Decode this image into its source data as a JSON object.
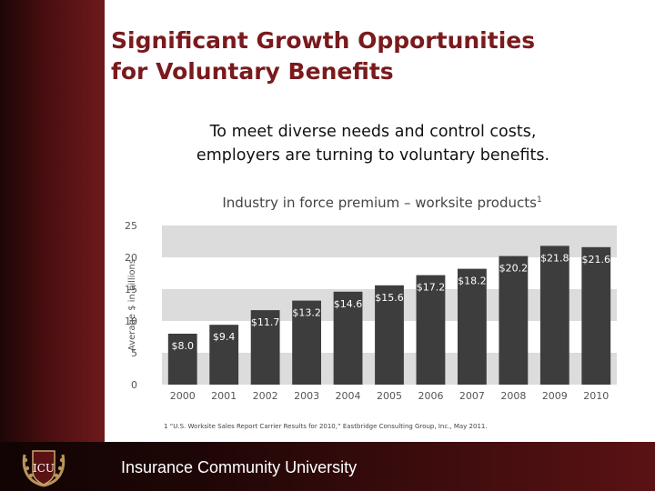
{
  "slide": {
    "title_line1": "Significant Growth Opportunities",
    "title_line2": "for Voluntary Benefits",
    "subtitle_line1": "To meet diverse needs and control costs,",
    "subtitle_line2": "employers are turning to voluntary benefits.",
    "footnote": "1 “U.S. Worksite Sales Report Carrier Results for 2010,” Eastbridge Consulting Group, Inc., May 2011.",
    "footer_text": "Insurance Community University",
    "logo_text": "ICU"
  },
  "colors": {
    "title": "#7a1a1d",
    "bar": "#3d3d3d",
    "band": "#dcdcdc",
    "footer": "#2a0808"
  },
  "chart_data": {
    "type": "bar",
    "title": "Industry in force premium – worksite products",
    "title_superscript": "1",
    "ylabel": "Average $ in billions",
    "xlabel": "",
    "categories": [
      "2000",
      "2001",
      "2002",
      "2003",
      "2004",
      "2005",
      "2006",
      "2007",
      "2008",
      "2009",
      "2010"
    ],
    "values": [
      8.0,
      9.4,
      11.7,
      13.2,
      14.6,
      15.6,
      17.2,
      18.2,
      20.2,
      21.8,
      21.6
    ],
    "data_labels": [
      "$8.0",
      "$9.4",
      "$11.7",
      "$13.2",
      "$14.6",
      "$15.6",
      "$17.2",
      "$18.2",
      "$20.2",
      "$21.8",
      "$21.6"
    ],
    "ylim": [
      0,
      25
    ],
    "yticks": [
      0,
      5,
      10,
      15,
      20,
      25
    ],
    "grid": "alternating horizontal bands",
    "legend": "none"
  }
}
